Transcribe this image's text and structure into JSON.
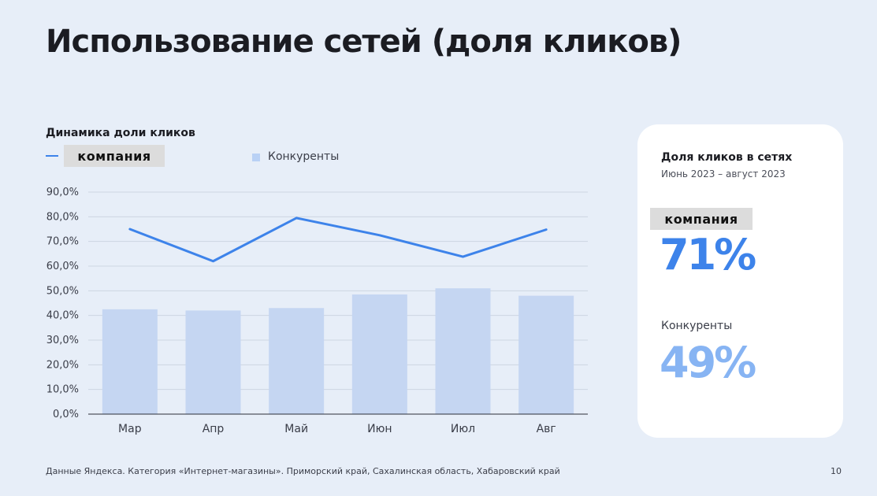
{
  "title": "Использование сетей (доля кликов)",
  "chart_data": {
    "type": "bar",
    "title": "Динамика доли кликов",
    "categories": [
      "Мар",
      "Апр",
      "Май",
      "Июн",
      "Июл",
      "Авг"
    ],
    "series": [
      {
        "name": "компания",
        "kind": "line",
        "color": "#3d83ea",
        "values": [
          75.0,
          62.0,
          79.5,
          72.5,
          63.8,
          74.8
        ]
      },
      {
        "name": "Конкуренты",
        "kind": "bar",
        "color": "#c5d6f2",
        "values": [
          42.5,
          42.0,
          43.0,
          48.5,
          51.0,
          48.0
        ]
      }
    ],
    "yticks": [
      "90,0%",
      "80,0%",
      "70,0%",
      "60,0%",
      "50,0%",
      "40,0%",
      "30,0%",
      "20,0%",
      "10,0%",
      "0,0%"
    ],
    "ylim": [
      0,
      90
    ],
    "xlabel": "",
    "ylabel": "",
    "grid": true,
    "legend": "top-left"
  },
  "legend": {
    "company": "компания",
    "competitors": "Конкуренты"
  },
  "card": {
    "title": "Доля кликов в сетях",
    "period": "Июнь 2023 – август 2023",
    "company_label": "компания",
    "company_value": "71%",
    "competitors_label": "Конкуренты",
    "competitors_value": "49%"
  },
  "footnote": "Данные Яндекса. Категория «Интернет-магазины». Приморский край, Сахалинская область, Хабаровский край",
  "page_number": "10"
}
